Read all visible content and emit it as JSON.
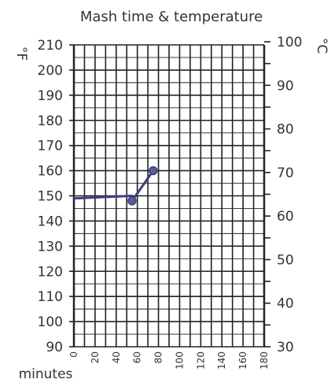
{
  "chart_data": {
    "type": "line",
    "title": "Mash time & temperature",
    "xlabel": "minutes",
    "ylabel_left": "°F",
    "ylabel_right": "°C",
    "x_ticks": [
      "0",
      "20",
      "40",
      "60",
      "80",
      "100",
      "120",
      "140",
      "160",
      "180"
    ],
    "y_ticks_left": [
      "90",
      "100",
      "110",
      "120",
      "130",
      "140",
      "150",
      "160",
      "170",
      "180",
      "190",
      "200",
      "210"
    ],
    "y_ticks_right": [
      "30",
      "40",
      "50",
      "60",
      "70",
      "80",
      "90",
      "100"
    ],
    "xlim": [
      0,
      180
    ],
    "ylim_left": [
      90,
      210
    ],
    "ylim_right": [
      30,
      100
    ],
    "grid": true,
    "series": [
      {
        "x": [
          0,
          55,
          55,
          75
        ],
        "y": [
          149,
          150,
          148,
          160
        ]
      }
    ],
    "markers": [
      {
        "x": 55,
        "y": 148
      },
      {
        "x": 75,
        "y": 160
      }
    ],
    "line_color": "#3f3f7f"
  }
}
